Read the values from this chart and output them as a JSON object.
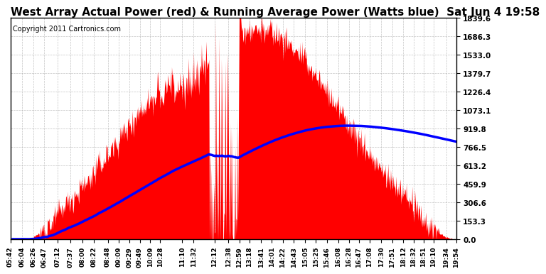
{
  "title": "West Array Actual Power (red) & Running Average Power (Watts blue)  Sat Jun 4 19:58",
  "copyright": "Copyright 2011 Cartronics.com",
  "y_ticks": [
    0.0,
    153.3,
    306.6,
    459.9,
    613.2,
    766.5,
    919.8,
    1073.1,
    1226.4,
    1379.7,
    1533.0,
    1686.3,
    1839.6
  ],
  "y_max": 1839.6,
  "x_labels": [
    "05:42",
    "06:04",
    "06:26",
    "06:47",
    "07:12",
    "07:37",
    "08:00",
    "08:22",
    "08:48",
    "09:09",
    "09:29",
    "09:49",
    "10:09",
    "10:28",
    "11:10",
    "11:32",
    "12:12",
    "12:38",
    "12:59",
    "13:18",
    "13:41",
    "14:01",
    "14:22",
    "14:43",
    "15:05",
    "15:25",
    "15:46",
    "16:08",
    "16:28",
    "16:47",
    "17:08",
    "17:30",
    "17:51",
    "18:12",
    "18:32",
    "18:51",
    "19:10",
    "19:34",
    "19:54"
  ],
  "bg_color": "#ffffff",
  "grid_color": "#aaaaaa",
  "actual_color": "#ff0000",
  "avg_color": "#0000ff",
  "title_fontsize": 11,
  "copyright_fontsize": 7,
  "avg_linewidth": 2.5
}
